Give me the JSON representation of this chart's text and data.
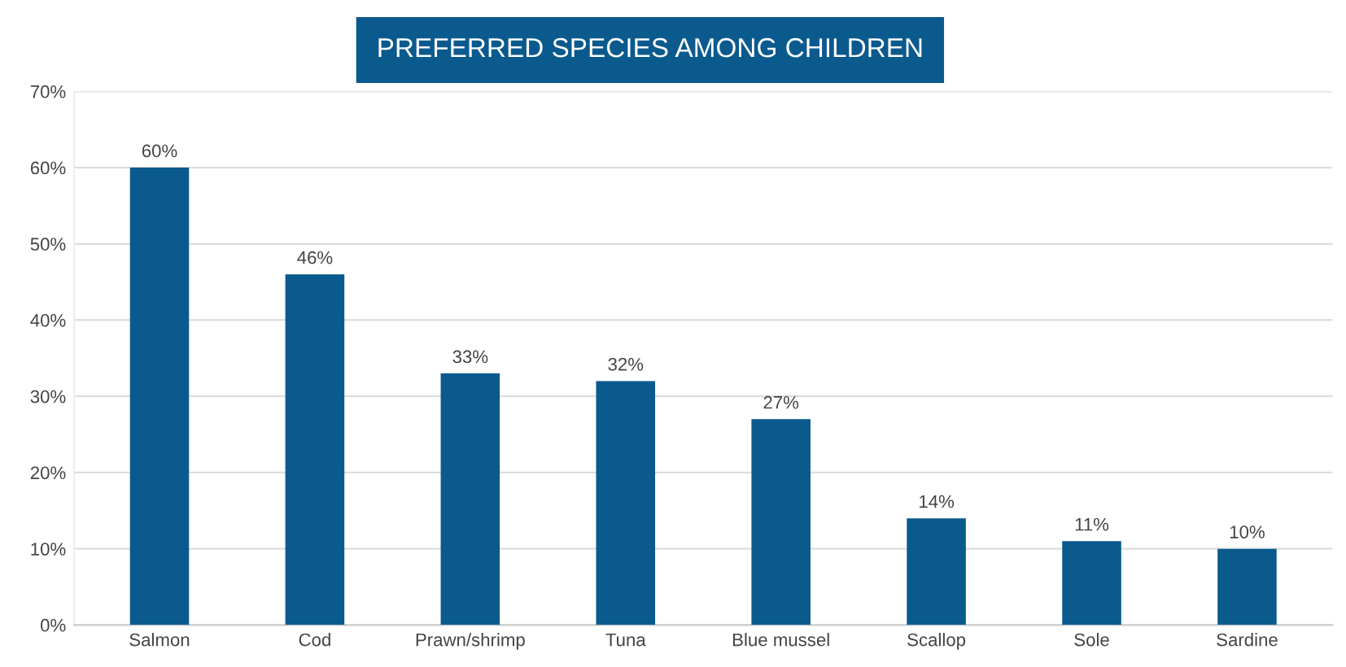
{
  "chart_data": {
    "type": "bar",
    "title": "PREFERRED SPECIES AMONG CHILDREN",
    "categories": [
      "Salmon",
      "Cod",
      "Prawn/shrimp",
      "Tuna",
      "Blue mussel",
      "Scallop",
      "Sole",
      "Sardine"
    ],
    "values": [
      60,
      46,
      33,
      32,
      27,
      14,
      11,
      10
    ],
    "value_labels": [
      "60%",
      "46%",
      "33%",
      "32%",
      "27%",
      "14%",
      "11%",
      "10%"
    ],
    "color": "#0b5a8e",
    "ylim": [
      0,
      70
    ],
    "yticks": [
      {
        "value": 0,
        "label": "0%"
      },
      {
        "value": 10,
        "label": "10%"
      },
      {
        "value": 20,
        "label": "20%"
      },
      {
        "value": 30,
        "label": "30%"
      },
      {
        "value": 40,
        "label": "40%"
      },
      {
        "value": 50,
        "label": "50%"
      },
      {
        "value": 60,
        "label": "60%"
      },
      {
        "value": 70,
        "label": "70%"
      }
    ],
    "grid": "y",
    "legend": false
  }
}
